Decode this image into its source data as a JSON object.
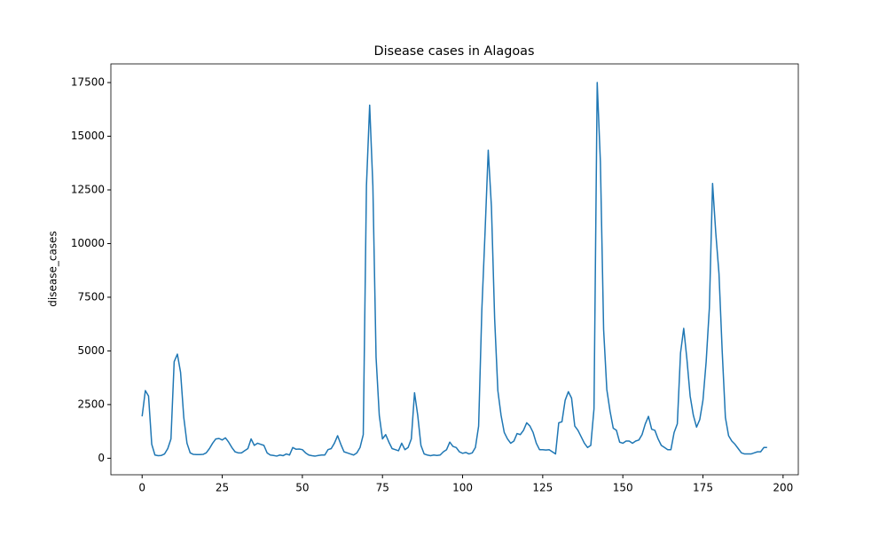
{
  "chart_data": {
    "type": "line",
    "title": "Disease cases in Alagoas",
    "ylabel": "disease_cases",
    "color": "#1f77b4",
    "x": [
      0,
      1,
      2,
      3,
      4,
      5,
      6,
      7,
      8,
      9,
      10,
      11,
      12,
      13,
      14,
      15,
      16,
      17,
      18,
      19,
      20,
      21,
      22,
      23,
      24,
      25,
      26,
      27,
      28,
      29,
      30,
      31,
      32,
      33,
      34,
      35,
      36,
      37,
      38,
      39,
      40,
      41,
      42,
      43,
      44,
      45,
      46,
      47,
      48,
      49,
      50,
      51,
      52,
      53,
      54,
      55,
      56,
      57,
      58,
      59,
      60,
      61,
      62,
      63,
      64,
      65,
      66,
      67,
      68,
      69,
      70,
      71,
      72,
      73,
      74,
      75,
      76,
      77,
      78,
      79,
      80,
      81,
      82,
      83,
      84,
      85,
      86,
      87,
      88,
      89,
      90,
      91,
      92,
      93,
      94,
      95,
      96,
      97,
      98,
      99,
      100,
      101,
      102,
      103,
      104,
      105,
      106,
      107,
      108,
      109,
      110,
      111,
      112,
      113,
      114,
      115,
      116,
      117,
      118,
      119,
      120,
      121,
      122,
      123,
      124,
      125,
      126,
      127,
      128,
      129,
      130,
      131,
      132,
      133,
      134,
      135,
      136,
      137,
      138,
      139,
      140,
      141,
      142,
      143,
      144,
      145,
      146,
      147,
      148,
      149,
      150,
      151,
      152,
      153,
      154,
      155,
      156,
      157,
      158,
      159,
      160,
      161,
      162,
      163,
      164,
      165,
      166,
      167,
      168,
      169,
      170,
      171,
      172,
      173,
      174,
      175,
      176,
      177,
      178,
      179,
      180,
      181,
      182,
      183,
      184,
      185,
      186,
      187,
      188,
      189,
      190,
      191,
      192,
      193,
      194,
      195
    ],
    "values": [
      1950,
      3150,
      2900,
      650,
      150,
      120,
      130,
      200,
      450,
      900,
      4500,
      4850,
      4000,
      1900,
      700,
      250,
      180,
      170,
      170,
      180,
      250,
      450,
      700,
      900,
      920,
      850,
      950,
      750,
      500,
      300,
      250,
      250,
      350,
      450,
      900,
      600,
      700,
      650,
      600,
      250,
      150,
      130,
      100,
      150,
      120,
      200,
      150,
      500,
      420,
      430,
      400,
      250,
      150,
      120,
      100,
      130,
      150,
      150,
      400,
      450,
      700,
      1050,
      650,
      300,
      250,
      200,
      150,
      250,
      500,
      1100,
      12700,
      16450,
      12700,
      4700,
      2000,
      900,
      1100,
      750,
      450,
      400,
      350,
      700,
      400,
      500,
      900,
      3050,
      2000,
      600,
      200,
      150,
      120,
      150,
      130,
      150,
      300,
      400,
      750,
      550,
      500,
      300,
      230,
      270,
      200,
      250,
      500,
      1500,
      6900,
      10500,
      14350,
      11700,
      6500,
      3150,
      2000,
      1200,
      900,
      700,
      800,
      1150,
      1100,
      1300,
      1650,
      1500,
      1200,
      700,
      400,
      400,
      380,
      400,
      300,
      200,
      1650,
      1700,
      2700,
      3100,
      2800,
      1500,
      1300,
      1000,
      700,
      500,
      600,
      2300,
      17500,
      13800,
      6000,
      3200,
      2200,
      1400,
      1300,
      750,
      700,
      800,
      800,
      700,
      800,
      850,
      1100,
      1600,
      1950,
      1350,
      1300,
      900,
      600,
      500,
      400,
      400,
      1200,
      1600,
      4900,
      6050,
      4600,
      2900,
      2000,
      1450,
      1800,
      2700,
      4500,
      7000,
      12800,
      10500,
      8600,
      5000,
      1900,
      1050,
      800,
      650,
      450,
      250,
      200,
      200,
      200,
      250,
      300,
      300,
      500,
      500
    ],
    "xlim": [
      -9.75,
      204.75
    ],
    "ylim": [
      -770,
      18370
    ],
    "xticks": [
      0,
      25,
      50,
      75,
      100,
      125,
      150,
      175,
      200
    ],
    "yticks": [
      0,
      2500,
      5000,
      7500,
      10000,
      12500,
      15000,
      17500
    ]
  }
}
